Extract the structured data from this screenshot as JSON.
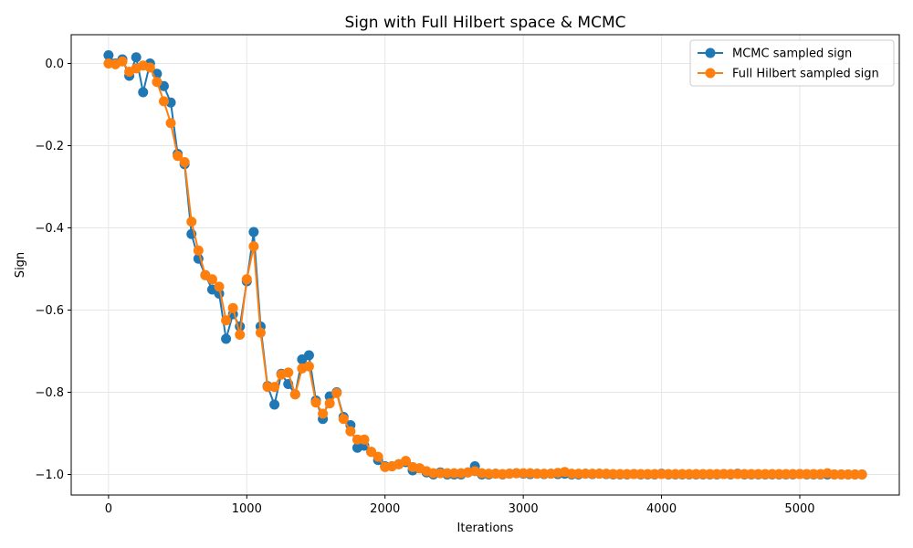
{
  "chart_data": {
    "type": "line",
    "title": "Sign with Full Hilbert space & MCMC",
    "xlabel": "Iterations",
    "ylabel": "Sign",
    "xlim": [
      -270,
      5720
    ],
    "ylim": [
      -1.05,
      0.07
    ],
    "xticks": [
      0,
      1000,
      2000,
      3000,
      4000,
      5000
    ],
    "yticks": [
      0.0,
      -0.2,
      -0.4,
      -0.6,
      -0.8,
      -1.0
    ],
    "xtick_labels": [
      "0",
      "1000",
      "2000",
      "3000",
      "4000",
      "5000"
    ],
    "ytick_labels": [
      "0.0",
      "−0.2",
      "−0.4",
      "−0.6",
      "−0.8",
      "−1.0"
    ],
    "grid": true,
    "legend_position": "upper-right",
    "x": [
      0,
      50,
      100,
      150,
      200,
      250,
      300,
      350,
      400,
      450,
      500,
      550,
      600,
      650,
      700,
      750,
      800,
      850,
      900,
      950,
      1000,
      1050,
      1100,
      1150,
      1200,
      1250,
      1300,
      1350,
      1400,
      1450,
      1500,
      1550,
      1600,
      1650,
      1700,
      1750,
      1800,
      1850,
      1900,
      1950,
      2000,
      2050,
      2100,
      2150,
      2200,
      2250,
      2300,
      2350,
      2400,
      2450,
      2500,
      2550,
      2600,
      2650,
      2700,
      2750,
      2800,
      2850,
      2900,
      2950,
      3000,
      3050,
      3100,
      3150,
      3200,
      3250,
      3300,
      3350,
      3400,
      3450,
      3500,
      3550,
      3600,
      3650,
      3700,
      3750,
      3800,
      3850,
      3900,
      3950,
      4000,
      4050,
      4100,
      4150,
      4200,
      4250,
      4300,
      4350,
      4400,
      4450,
      4500,
      4550,
      4600,
      4650,
      4700,
      4750,
      4800,
      4850,
      4900,
      4950,
      5000,
      5050,
      5100,
      5150,
      5200,
      5250,
      5300,
      5350,
      5400,
      5450
    ],
    "series": [
      {
        "name": "MCMC sampled sign",
        "color": "#1f77b4",
        "values": [
          0.02,
          0.0,
          0.01,
          -0.03,
          0.015,
          -0.07,
          0.0,
          -0.025,
          -0.055,
          -0.095,
          -0.22,
          -0.245,
          -0.415,
          -0.475,
          -0.515,
          -0.55,
          -0.56,
          -0.67,
          -0.61,
          -0.64,
          -0.53,
          -0.41,
          -0.64,
          -0.785,
          -0.83,
          -0.755,
          -0.78,
          -0.805,
          -0.72,
          -0.71,
          -0.82,
          -0.865,
          -0.81,
          -0.8,
          -0.86,
          -0.88,
          -0.935,
          -0.93,
          -0.945,
          -0.965,
          -0.98,
          -0.98,
          -0.975,
          -0.97,
          -0.99,
          -0.985,
          -0.995,
          -1.0,
          -0.995,
          -1.0,
          -1.0,
          -1.0,
          -0.995,
          -0.98,
          -1.0,
          -1.0,
          -0.998,
          -1.0,
          -0.998,
          -0.997,
          -0.998,
          -0.999,
          -0.998,
          -0.999,
          -0.998,
          -0.999,
          -0.998,
          -1.0,
          -1.0,
          -0.998,
          -0.999,
          -0.998,
          -0.999,
          -1.0,
          -1.0,
          -1.0,
          -0.999,
          -1.0,
          -1.0,
          -1.0,
          -0.998,
          -1.0,
          -1.0,
          -1.0,
          -1.0,
          -1.0,
          -1.0,
          -1.0,
          -1.0,
          -0.999,
          -1.0,
          -0.998,
          -1.0,
          -1.0,
          -1.0,
          -1.0,
          -1.0,
          -1.0,
          -1.0,
          -1.0,
          -0.999,
          -1.0,
          -1.0,
          -1.0,
          -1.0,
          -1.0,
          -1.0,
          -1.0,
          -1.0,
          -1.0
        ]
      },
      {
        "name": "Full Hilbert sampled sign",
        "color": "#ff7f0e",
        "values": [
          0.0,
          -0.002,
          0.005,
          -0.02,
          -0.012,
          -0.005,
          -0.01,
          -0.045,
          -0.092,
          -0.145,
          -0.225,
          -0.24,
          -0.385,
          -0.455,
          -0.515,
          -0.525,
          -0.543,
          -0.625,
          -0.595,
          -0.66,
          -0.525,
          -0.445,
          -0.655,
          -0.787,
          -0.787,
          -0.757,
          -0.752,
          -0.805,
          -0.742,
          -0.737,
          -0.825,
          -0.852,
          -0.827,
          -0.802,
          -0.865,
          -0.895,
          -0.915,
          -0.915,
          -0.945,
          -0.957,
          -0.982,
          -0.98,
          -0.975,
          -0.967,
          -0.982,
          -0.985,
          -0.992,
          -0.997,
          -0.997,
          -0.997,
          -0.997,
          -0.997,
          -0.995,
          -0.992,
          -0.997,
          -0.998,
          -0.998,
          -0.999,
          -0.998,
          -0.997,
          -0.997,
          -0.997,
          -0.998,
          -0.998,
          -0.998,
          -0.996,
          -0.994,
          -0.998,
          -0.998,
          -0.998,
          -0.998,
          -0.998,
          -0.998,
          -0.999,
          -0.999,
          -0.999,
          -0.999,
          -0.999,
          -0.999,
          -0.999,
          -0.999,
          -0.999,
          -0.999,
          -0.999,
          -0.999,
          -0.999,
          -0.999,
          -0.999,
          -0.999,
          -0.999,
          -0.999,
          -0.999,
          -0.999,
          -0.999,
          -0.999,
          -0.999,
          -0.999,
          -0.999,
          -0.999,
          -0.999,
          -0.999,
          -0.999,
          -0.999,
          -0.999,
          -0.997,
          -1.0,
          -1.0,
          -1.0,
          -1.0,
          -1.0
        ]
      }
    ]
  }
}
